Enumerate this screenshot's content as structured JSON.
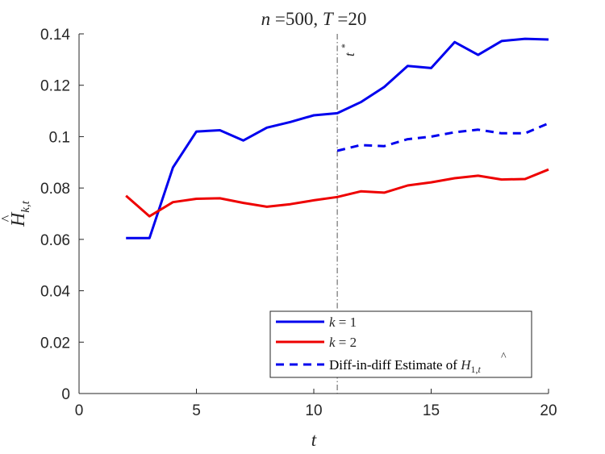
{
  "chart_data": {
    "type": "line",
    "title": "n =500, T =20",
    "xlabel": "t",
    "ylabel": "Ĥ_{k,t}",
    "xlim": [
      0,
      20
    ],
    "ylim": [
      0,
      0.14
    ],
    "xticks": [
      0,
      5,
      10,
      15,
      20
    ],
    "xtick_labels": [
      "0",
      "5",
      "10",
      "15",
      "20"
    ],
    "yticks": [
      0,
      0.02,
      0.04,
      0.06,
      0.08,
      0.1,
      0.12,
      0.14
    ],
    "ytick_labels": [
      "0",
      "0.02",
      "0.04",
      "0.06",
      "0.08",
      "0.1",
      "0.12",
      "0.14"
    ],
    "grid": false,
    "legend_position": "bottom-right",
    "vline": {
      "x": 11,
      "label": "t*",
      "style": "dash-dot",
      "color": "#555555"
    },
    "series": [
      {
        "name": "k = 1",
        "color": "#0000ee",
        "style": "solid",
        "x": [
          2,
          3,
          4,
          5,
          6,
          7,
          8,
          9,
          10,
          11,
          12,
          13,
          14,
          15,
          16,
          17,
          18,
          19,
          20
        ],
        "y": [
          0.0605,
          0.0605,
          0.088,
          0.102,
          0.1025,
          0.0985,
          0.1035,
          0.1057,
          0.1083,
          0.1091,
          0.1134,
          0.1193,
          0.1275,
          0.1267,
          0.1368,
          0.1318,
          0.1372,
          0.1381,
          0.1378
        ]
      },
      {
        "name": "k = 2",
        "color": "#ee0000",
        "style": "solid",
        "x": [
          2,
          3,
          4,
          5,
          6,
          7,
          8,
          9,
          10,
          11,
          12,
          13,
          14,
          15,
          16,
          17,
          18,
          19,
          20
        ],
        "y": [
          0.077,
          0.069,
          0.0745,
          0.0758,
          0.076,
          0.0742,
          0.0727,
          0.0737,
          0.0752,
          0.0765,
          0.0787,
          0.0782,
          0.081,
          0.0822,
          0.0838,
          0.0848,
          0.0833,
          0.0835,
          0.0872
        ]
      },
      {
        "name": "Diff-in-diff Estimate of Ĥ_{1,t}",
        "color": "#0000ee",
        "style": "dashed",
        "x": [
          11,
          12,
          13,
          14,
          15,
          16,
          17,
          18,
          19,
          20
        ],
        "y": [
          0.0945,
          0.0967,
          0.0963,
          0.099,
          0.1,
          0.1017,
          0.1027,
          0.1013,
          0.1013,
          0.1052
        ]
      }
    ]
  }
}
